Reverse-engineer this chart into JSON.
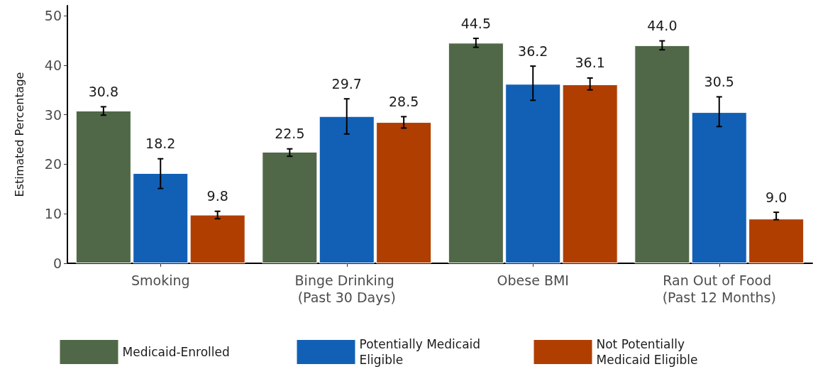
{
  "chart_data": {
    "type": "bar",
    "ylabel": "Estimated Percentage",
    "categories": [
      "Smoking",
      "Binge Drinking (Past 30 Days)",
      "Obese BMI",
      "Ran Out of Food (Past 12 Months)"
    ],
    "series": [
      {
        "name": "Medicaid-Enrolled",
        "color": "#506847",
        "values": [
          30.8,
          22.5,
          44.5,
          44.0
        ],
        "errors": [
          [
            29.9,
            31.6
          ],
          [
            21.6,
            23.1
          ],
          [
            43.6,
            45.4
          ],
          [
            43.1,
            44.9
          ]
        ],
        "value_labels": [
          "30.8",
          "22.5",
          "44.5",
          "44.0"
        ]
      },
      {
        "name": "Potentially Medicaid Eligible",
        "color": "#1160b5",
        "values": [
          18.2,
          29.7,
          36.2,
          30.5
        ],
        "errors": [
          [
            15.1,
            21.1
          ],
          [
            26.1,
            33.2
          ],
          [
            32.9,
            39.8
          ],
          [
            27.6,
            33.6
          ]
        ],
        "value_labels": [
          "18.2",
          "29.7",
          "36.2",
          "30.5"
        ]
      },
      {
        "name": "Not Potentially Medicaid Eligible",
        "color": "#b03e00",
        "values": [
          9.8,
          28.5,
          36.1,
          9.0
        ],
        "errors": [
          [
            9.0,
            10.5
          ],
          [
            27.3,
            29.6
          ],
          [
            35.0,
            37.4
          ],
          [
            8.8,
            10.3
          ]
        ],
        "value_labels": [
          "9.8",
          "28.5",
          "36.1",
          "9.0"
        ]
      }
    ],
    "ylim": [
      0,
      52
    ],
    "yticks": [
      0,
      10,
      20,
      30,
      40,
      50
    ],
    "grid": false,
    "legend": "bottom"
  }
}
